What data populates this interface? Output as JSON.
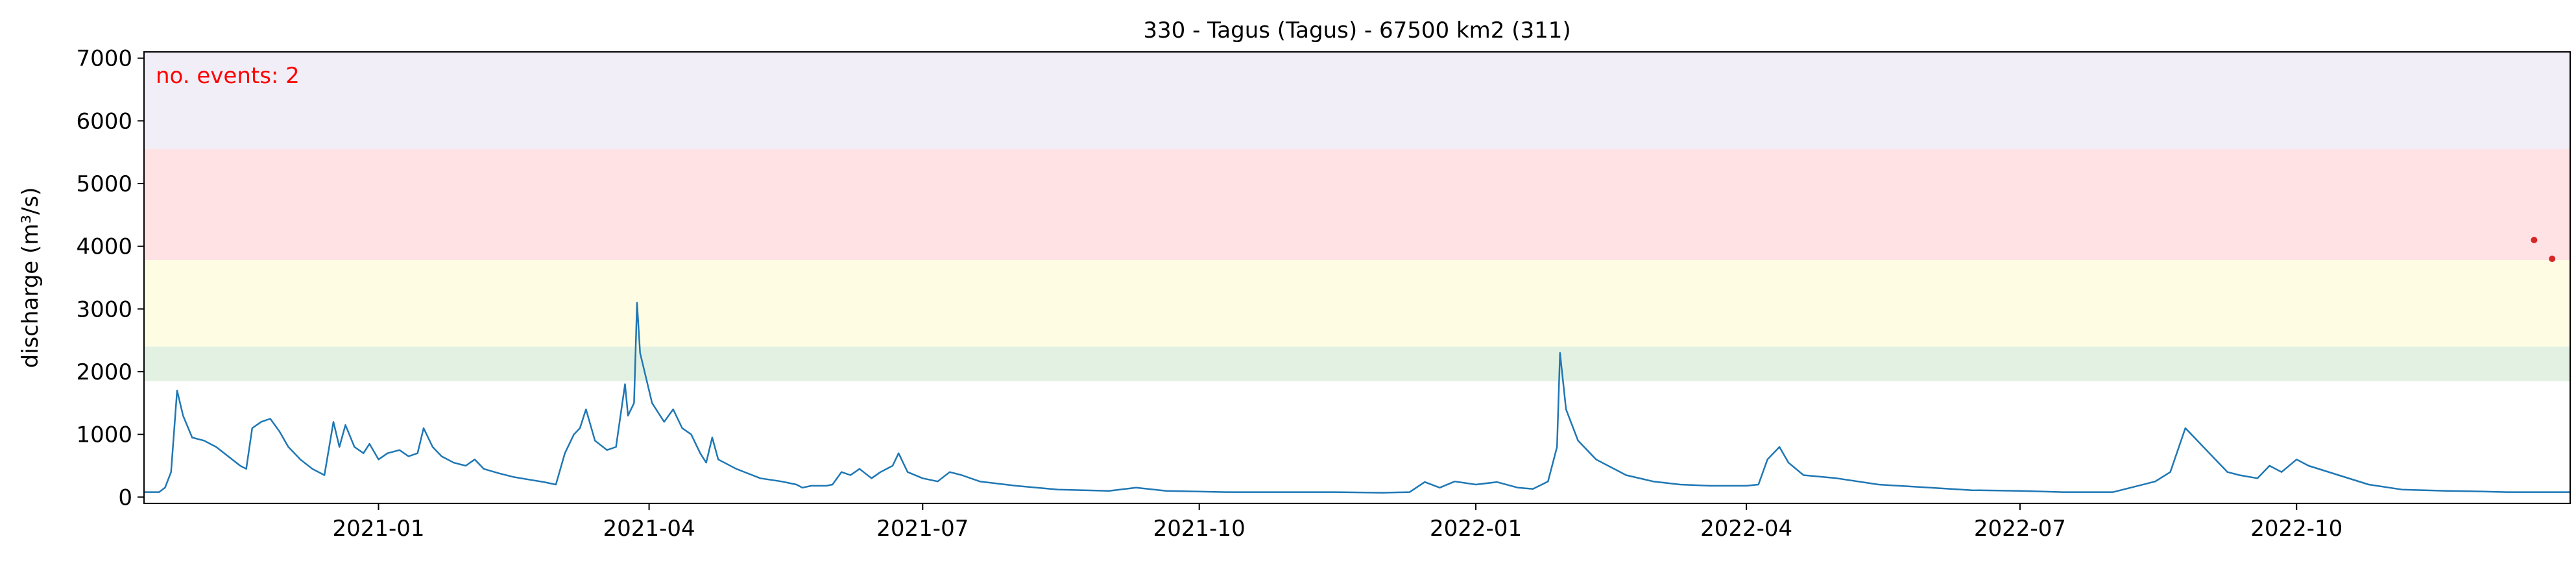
{
  "chart_data": {
    "type": "line",
    "title": "330 - Tagus (Tagus) - 67500 km2 (311)",
    "ylabel": "discharge (m³/s)",
    "xlabel": "",
    "xlim": [
      "2020-10-15",
      "2022-12-31"
    ],
    "ylim": [
      -100,
      7100
    ],
    "yticks": [
      0,
      1000,
      2000,
      3000,
      4000,
      5000,
      6000,
      7000
    ],
    "xticks": [
      {
        "date": "2021-01-01",
        "label": "2021-01"
      },
      {
        "date": "2021-04-01",
        "label": "2021-04"
      },
      {
        "date": "2021-07-01",
        "label": "2021-07"
      },
      {
        "date": "2021-10-01",
        "label": "2021-10"
      },
      {
        "date": "2022-01-01",
        "label": "2022-01"
      },
      {
        "date": "2022-04-01",
        "label": "2022-04"
      },
      {
        "date": "2022-07-01",
        "label": "2022-07"
      },
      {
        "date": "2022-10-01",
        "label": "2022-10"
      }
    ],
    "grid": false,
    "threshold_bands": [
      {
        "from": 1850,
        "to": 2400,
        "color": "#e3f1e3"
      },
      {
        "from": 2400,
        "to": 3780,
        "color": "#fefde4"
      },
      {
        "from": 3780,
        "to": 5550,
        "color": "#ffe2e4"
      },
      {
        "from": 5550,
        "to": 7100,
        "color": "#f2eef8"
      }
    ],
    "annotation": {
      "text": "no. events: 2",
      "color": "#ff0000"
    },
    "series": [
      {
        "color": "#1f77b4",
        "points": [
          [
            "2020-10-15",
            80
          ],
          [
            "2020-10-20",
            80
          ],
          [
            "2020-10-22",
            150
          ],
          [
            "2020-10-24",
            400
          ],
          [
            "2020-10-26",
            1700
          ],
          [
            "2020-10-28",
            1300
          ],
          [
            "2020-10-31",
            950
          ],
          [
            "2020-11-04",
            900
          ],
          [
            "2020-11-08",
            800
          ],
          [
            "2020-11-12",
            650
          ],
          [
            "2020-11-16",
            500
          ],
          [
            "2020-11-18",
            450
          ],
          [
            "2020-11-20",
            1100
          ],
          [
            "2020-11-23",
            1200
          ],
          [
            "2020-11-26",
            1250
          ],
          [
            "2020-11-29",
            1050
          ],
          [
            "2020-12-02",
            800
          ],
          [
            "2020-12-06",
            600
          ],
          [
            "2020-12-10",
            450
          ],
          [
            "2020-12-14",
            350
          ],
          [
            "2020-12-17",
            1200
          ],
          [
            "2020-12-19",
            800
          ],
          [
            "2020-12-21",
            1150
          ],
          [
            "2020-12-24",
            800
          ],
          [
            "2020-12-27",
            700
          ],
          [
            "2020-12-29",
            850
          ],
          [
            "2021-01-01",
            600
          ],
          [
            "2021-01-04",
            700
          ],
          [
            "2021-01-08",
            750
          ],
          [
            "2021-01-11",
            650
          ],
          [
            "2021-01-14",
            700
          ],
          [
            "2021-01-16",
            1100
          ],
          [
            "2021-01-19",
            800
          ],
          [
            "2021-01-22",
            650
          ],
          [
            "2021-01-26",
            550
          ],
          [
            "2021-01-30",
            500
          ],
          [
            "2021-02-02",
            600
          ],
          [
            "2021-02-05",
            450
          ],
          [
            "2021-02-10",
            380
          ],
          [
            "2021-02-15",
            320
          ],
          [
            "2021-02-20",
            280
          ],
          [
            "2021-02-25",
            240
          ],
          [
            "2021-03-01",
            200
          ],
          [
            "2021-03-04",
            700
          ],
          [
            "2021-03-07",
            1000
          ],
          [
            "2021-03-09",
            1100
          ],
          [
            "2021-03-11",
            1400
          ],
          [
            "2021-03-14",
            900
          ],
          [
            "2021-03-18",
            750
          ],
          [
            "2021-03-21",
            800
          ],
          [
            "2021-03-24",
            1800
          ],
          [
            "2021-03-25",
            1300
          ],
          [
            "2021-03-27",
            1500
          ],
          [
            "2021-03-28",
            3100
          ],
          [
            "2021-03-29",
            2300
          ],
          [
            "2021-04-02",
            1500
          ],
          [
            "2021-04-06",
            1200
          ],
          [
            "2021-04-09",
            1400
          ],
          [
            "2021-04-12",
            1100
          ],
          [
            "2021-04-15",
            1000
          ],
          [
            "2021-04-18",
            700
          ],
          [
            "2021-04-20",
            550
          ],
          [
            "2021-04-22",
            950
          ],
          [
            "2021-04-24",
            600
          ],
          [
            "2021-04-30",
            450
          ],
          [
            "2021-05-08",
            300
          ],
          [
            "2021-05-15",
            250
          ],
          [
            "2021-05-20",
            200
          ],
          [
            "2021-05-22",
            150
          ],
          [
            "2021-05-25",
            180
          ],
          [
            "2021-05-30",
            180
          ],
          [
            "2021-06-01",
            200
          ],
          [
            "2021-06-04",
            400
          ],
          [
            "2021-06-07",
            350
          ],
          [
            "2021-06-10",
            450
          ],
          [
            "2021-06-14",
            300
          ],
          [
            "2021-06-17",
            400
          ],
          [
            "2021-06-21",
            500
          ],
          [
            "2021-06-23",
            700
          ],
          [
            "2021-06-26",
            400
          ],
          [
            "2021-07-01",
            300
          ],
          [
            "2021-07-06",
            250
          ],
          [
            "2021-07-10",
            400
          ],
          [
            "2021-07-14",
            350
          ],
          [
            "2021-07-20",
            250
          ],
          [
            "2021-08-01",
            180
          ],
          [
            "2021-08-15",
            120
          ],
          [
            "2021-09-01",
            100
          ],
          [
            "2021-09-10",
            150
          ],
          [
            "2021-09-20",
            100
          ],
          [
            "2021-10-10",
            80
          ],
          [
            "2021-11-01",
            80
          ],
          [
            "2021-11-15",
            80
          ],
          [
            "2021-12-01",
            70
          ],
          [
            "2021-12-10",
            80
          ],
          [
            "2021-12-15",
            240
          ],
          [
            "2021-12-20",
            150
          ],
          [
            "2021-12-25",
            250
          ],
          [
            "2022-01-01",
            200
          ],
          [
            "2022-01-08",
            240
          ],
          [
            "2022-01-15",
            150
          ],
          [
            "2022-01-20",
            130
          ],
          [
            "2022-01-25",
            250
          ],
          [
            "2022-01-28",
            800
          ],
          [
            "2022-01-29",
            2300
          ],
          [
            "2022-01-31",
            1400
          ],
          [
            "2022-02-04",
            900
          ],
          [
            "2022-02-10",
            600
          ],
          [
            "2022-02-20",
            350
          ],
          [
            "2022-03-01",
            250
          ],
          [
            "2022-03-10",
            200
          ],
          [
            "2022-03-20",
            180
          ],
          [
            "2022-04-01",
            180
          ],
          [
            "2022-04-05",
            200
          ],
          [
            "2022-04-08",
            600
          ],
          [
            "2022-04-12",
            800
          ],
          [
            "2022-04-15",
            550
          ],
          [
            "2022-04-20",
            350
          ],
          [
            "2022-05-01",
            300
          ],
          [
            "2022-05-15",
            200
          ],
          [
            "2022-06-01",
            150
          ],
          [
            "2022-06-15",
            110
          ],
          [
            "2022-07-01",
            100
          ],
          [
            "2022-07-15",
            80
          ],
          [
            "2022-08-01",
            80
          ],
          [
            "2022-08-15",
            250
          ],
          [
            "2022-08-20",
            400
          ],
          [
            "2022-08-25",
            1100
          ],
          [
            "2022-08-29",
            900
          ],
          [
            "2022-09-02",
            700
          ],
          [
            "2022-09-05",
            550
          ],
          [
            "2022-09-08",
            400
          ],
          [
            "2022-09-12",
            350
          ],
          [
            "2022-09-18",
            300
          ],
          [
            "2022-09-22",
            500
          ],
          [
            "2022-09-26",
            400
          ],
          [
            "2022-10-01",
            600
          ],
          [
            "2022-10-05",
            500
          ],
          [
            "2022-10-15",
            350
          ],
          [
            "2022-10-25",
            200
          ],
          [
            "2022-11-05",
            120
          ],
          [
            "2022-11-20",
            100
          ],
          [
            "2022-12-01",
            90
          ],
          [
            "2022-12-10",
            80
          ],
          [
            "2022-12-20",
            80
          ],
          [
            "2022-12-31",
            80
          ]
        ]
      }
    ],
    "events": [
      {
        "date": "2022-12-19",
        "value": 4100,
        "color": "#d62728"
      },
      {
        "date": "2022-12-25",
        "value": 3800,
        "color": "#d62728"
      }
    ]
  }
}
